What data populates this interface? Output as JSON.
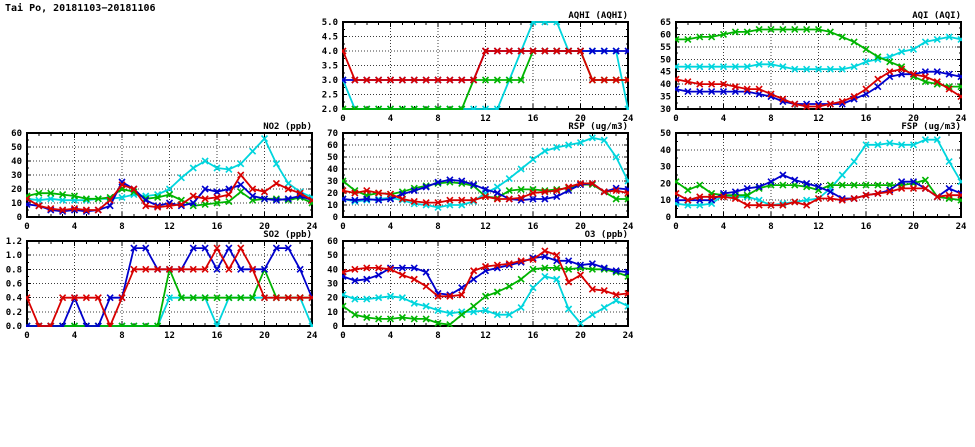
{
  "page": {
    "title": "Tai Po, 20181103−20181106"
  },
  "colors": {
    "grid": "#3c3c3c",
    "axis": "#000000",
    "blue": "#0000cd",
    "red": "#d80000",
    "green": "#00b400",
    "cyan": "#00d5dd"
  },
  "chart_data": [
    {
      "id": "aqhi",
      "type": "line",
      "title": "AQHI (AQHI)",
      "xlim": [
        0,
        24
      ],
      "xticks": [
        0,
        4,
        8,
        12,
        16,
        20,
        24
      ],
      "ylim": [
        2.0,
        5.0
      ],
      "yticks": [
        2.0,
        2.5,
        3.0,
        3.5,
        4.0,
        4.5,
        5.0
      ],
      "ytick_labels": [
        "2.0",
        "2.5",
        "3.0",
        "3.5",
        "4.0",
        "4.5",
        "5.0"
      ],
      "series": [
        {
          "name": "cyan",
          "color": "#00d5dd",
          "values": [
            3,
            2,
            2,
            2,
            2,
            2,
            2,
            2,
            2,
            2,
            2,
            2,
            2,
            2,
            3,
            4,
            5,
            5,
            5,
            4,
            4,
            4,
            4,
            4,
            2
          ]
        },
        {
          "name": "green",
          "color": "#00b400",
          "values": [
            2,
            2,
            2,
            2,
            2,
            2,
            2,
            2,
            2,
            2,
            2,
            3,
            3,
            3,
            3,
            3,
            4,
            4,
            4,
            4,
            4,
            3,
            3,
            3,
            3
          ]
        },
        {
          "name": "blue",
          "color": "#0000cd",
          "values": [
            3,
            3,
            3,
            3,
            3,
            3,
            3,
            3,
            3,
            3,
            3,
            3,
            4,
            4,
            4,
            4,
            4,
            4,
            4,
            4,
            4,
            4,
            4,
            4,
            4
          ]
        },
        {
          "name": "red",
          "color": "#d80000",
          "values": [
            4,
            3,
            3,
            3,
            3,
            3,
            3,
            3,
            3,
            3,
            3,
            3,
            4,
            4,
            4,
            4,
            4,
            4,
            4,
            4,
            4,
            3,
            3,
            3,
            3
          ]
        }
      ]
    },
    {
      "id": "aqi",
      "type": "line",
      "title": "AQI (AQI)",
      "xlim": [
        0,
        24
      ],
      "xticks": [
        0,
        4,
        8,
        12,
        16,
        20,
        24
      ],
      "ylim": [
        30,
        65
      ],
      "yticks": [
        30,
        35,
        40,
        45,
        50,
        55,
        60,
        65
      ],
      "ytick_labels": [
        "30",
        "35",
        "40",
        "45",
        "50",
        "55",
        "60",
        "65"
      ],
      "series": [
        {
          "name": "cyan",
          "color": "#00d5dd",
          "values": [
            47,
            47,
            47,
            47,
            47,
            47,
            47,
            48,
            48,
            47,
            46,
            46,
            46,
            46,
            46,
            47,
            49,
            50,
            51,
            53,
            54,
            57,
            58,
            59,
            58
          ]
        },
        {
          "name": "green",
          "color": "#00b400",
          "values": [
            58,
            58,
            59,
            59,
            60,
            61,
            61,
            62,
            62,
            62,
            62,
            62,
            62,
            61,
            59,
            57,
            54,
            51,
            49,
            47,
            43,
            41,
            40,
            39,
            39
          ]
        },
        {
          "name": "blue",
          "color": "#0000cd",
          "values": [
            38,
            37,
            37,
            37,
            37,
            37,
            37,
            36,
            35,
            33,
            32,
            32,
            32,
            32,
            32,
            34,
            36,
            39,
            43,
            44,
            44,
            45,
            45,
            44,
            43
          ]
        },
        {
          "name": "red",
          "color": "#d80000",
          "values": [
            42,
            41,
            40,
            40,
            40,
            39,
            38,
            38,
            36,
            34,
            32,
            31,
            31,
            32,
            33,
            35,
            38,
            42,
            45,
            46,
            44,
            43,
            41,
            38,
            35
          ]
        }
      ]
    },
    {
      "id": "no2",
      "type": "line",
      "title": "NO2 (ppb)",
      "xlim": [
        0,
        24
      ],
      "xticks": [
        0,
        4,
        8,
        12,
        16,
        20,
        24
      ],
      "ylim": [
        0,
        60
      ],
      "yticks": [
        0,
        10,
        20,
        30,
        40,
        50,
        60
      ],
      "ytick_labels": [
        "0",
        "10",
        "20",
        "30",
        "40",
        "50",
        "60"
      ],
      "series": [
        {
          "name": "cyan",
          "color": "#00d5dd",
          "values": [
            13,
            12,
            13,
            12,
            12,
            12,
            13,
            13,
            14,
            16,
            15,
            16,
            20,
            28,
            35,
            40,
            35,
            34,
            38,
            47,
            56,
            38,
            24,
            18,
            14
          ]
        },
        {
          "name": "green",
          "color": "#00b400",
          "values": [
            15,
            17,
            17,
            16,
            15,
            13,
            13,
            14,
            20,
            18,
            13,
            14,
            16,
            12,
            8,
            9,
            10,
            11,
            18,
            12,
            13,
            13,
            12,
            14,
            10
          ]
        },
        {
          "name": "blue",
          "color": "#0000cd",
          "values": [
            9,
            8,
            5,
            4,
            5,
            4,
            5,
            8,
            25,
            20,
            12,
            8,
            10,
            8,
            10,
            20,
            18,
            20,
            23,
            15,
            13,
            12,
            13,
            15,
            12
          ]
        },
        {
          "name": "red",
          "color": "#d80000",
          "values": [
            13,
            8,
            6,
            5,
            6,
            5,
            5,
            12,
            23,
            20,
            8,
            7,
            8,
            9,
            15,
            13,
            14,
            16,
            30,
            20,
            18,
            24,
            20,
            17,
            12
          ]
        }
      ]
    },
    {
      "id": "rsp",
      "type": "line",
      "title": "RSP (ug/m3)",
      "xlim": [
        0,
        24
      ],
      "xticks": [
        0,
        4,
        8,
        12,
        16,
        20,
        24
      ],
      "ylim": [
        0,
        70
      ],
      "yticks": [
        0,
        10,
        20,
        30,
        40,
        50,
        60,
        70
      ],
      "ytick_labels": [
        "0",
        "10",
        "20",
        "30",
        "40",
        "50",
        "60",
        "70"
      ],
      "series": [
        {
          "name": "cyan",
          "color": "#00d5dd",
          "values": [
            15,
            13,
            14,
            15,
            16,
            14,
            11,
            10,
            8,
            10,
            10,
            13,
            20,
            25,
            32,
            40,
            48,
            55,
            58,
            60,
            62,
            66,
            64,
            50,
            30
          ]
        },
        {
          "name": "green",
          "color": "#00b400",
          "values": [
            30,
            22,
            18,
            20,
            19,
            21,
            24,
            26,
            28,
            29,
            28,
            26,
            17,
            16,
            22,
            23,
            23,
            22,
            23,
            24,
            27,
            27,
            21,
            15,
            15
          ]
        },
        {
          "name": "blue",
          "color": "#0000cd",
          "values": [
            15,
            14,
            15,
            14,
            15,
            19,
            22,
            25,
            29,
            31,
            30,
            27,
            23,
            20,
            15,
            14,
            15,
            15,
            17,
            22,
            27,
            28,
            21,
            24,
            23
          ]
        },
        {
          "name": "red",
          "color": "#d80000",
          "values": [
            22,
            20,
            22,
            20,
            19,
            15,
            13,
            12,
            12,
            14,
            14,
            14,
            17,
            15,
            15,
            16,
            20,
            21,
            22,
            25,
            28,
            28,
            21,
            22,
            20
          ]
        }
      ]
    },
    {
      "id": "fsp",
      "type": "line",
      "title": "FSP (ug/m3)",
      "xlim": [
        0,
        24
      ],
      "xticks": [
        0,
        4,
        8,
        12,
        16,
        20,
        24
      ],
      "ylim": [
        0,
        50
      ],
      "yticks": [
        0,
        10,
        20,
        30,
        40,
        50
      ],
      "ytick_labels": [
        "0",
        "10",
        "20",
        "30",
        "40",
        "50"
      ],
      "series": [
        {
          "name": "cyan",
          "color": "#00d5dd",
          "values": [
            8,
            7,
            7,
            8,
            13,
            12,
            12,
            10,
            7,
            8,
            9,
            10,
            11,
            17,
            25,
            33,
            43,
            43,
            44,
            43,
            43,
            46,
            46,
            33,
            21
          ]
        },
        {
          "name": "green",
          "color": "#00b400",
          "values": [
            21,
            16,
            19,
            14,
            13,
            13,
            13,
            17,
            19,
            19,
            19,
            18,
            16,
            19,
            19,
            19,
            19,
            19,
            19,
            19,
            20,
            22,
            12,
            11,
            10
          ]
        },
        {
          "name": "blue",
          "color": "#0000cd",
          "values": [
            10,
            10,
            10,
            10,
            14,
            15,
            17,
            18,
            21,
            25,
            22,
            20,
            18,
            15,
            11,
            11,
            13,
            14,
            16,
            21,
            21,
            17,
            12,
            17,
            14
          ]
        },
        {
          "name": "red",
          "color": "#d80000",
          "values": [
            14,
            10,
            12,
            12,
            12,
            11,
            7,
            7,
            7,
            7,
            9,
            7,
            11,
            11,
            10,
            11,
            13,
            14,
            15,
            17,
            17,
            17,
            12,
            13,
            13
          ]
        }
      ]
    },
    {
      "id": "so2",
      "type": "line",
      "title": "SO2 (ppb)",
      "xlim": [
        0,
        24
      ],
      "xticks": [
        0,
        4,
        8,
        12,
        16,
        20,
        24
      ],
      "ylim": [
        0,
        1.2
      ],
      "yticks": [
        0,
        0.2,
        0.4,
        0.6,
        0.8,
        1.0,
        1.2
      ],
      "ytick_labels": [
        "0.0",
        "0.2",
        "0.4",
        "0.6",
        "0.8",
        "1.0",
        "1.2"
      ],
      "series": [
        {
          "name": "cyan",
          "color": "#00d5dd",
          "values": [
            0,
            0,
            0,
            0,
            0,
            0,
            0,
            0,
            0,
            0,
            0,
            0,
            0.4,
            0.4,
            0.4,
            0.4,
            0,
            0.4,
            0.4,
            0.4,
            0.4,
            0.4,
            0.4,
            0.4,
            0
          ]
        },
        {
          "name": "green",
          "color": "#00b400",
          "values": [
            0,
            0,
            0,
            0,
            0,
            0,
            0,
            0,
            0,
            0,
            0,
            0,
            0.8,
            0.4,
            0.4,
            0.4,
            0.4,
            0.4,
            0.4,
            0.4,
            0.8,
            0.4,
            0.4,
            0.4,
            0.4
          ]
        },
        {
          "name": "blue",
          "color": "#0000cd",
          "values": [
            0,
            0,
            0,
            0,
            0.4,
            0,
            0,
            0.4,
            0.4,
            1.1,
            1.1,
            0.8,
            0.8,
            0.8,
            1.1,
            1.1,
            0.8,
            1.1,
            0.8,
            0.8,
            0.8,
            1.1,
            1.1,
            0.8,
            0.4
          ]
        },
        {
          "name": "red",
          "color": "#d80000",
          "values": [
            0.4,
            0,
            0,
            0.4,
            0.4,
            0.4,
            0.4,
            0,
            0.4,
            0.8,
            0.8,
            0.8,
            0.8,
            0.8,
            0.8,
            0.8,
            1.1,
            0.8,
            1.1,
            0.8,
            0.4,
            0.4,
            0.4,
            0.4,
            0.4
          ]
        }
      ]
    },
    {
      "id": "o3",
      "type": "line",
      "title": "O3 (ppb)",
      "xlim": [
        0,
        24
      ],
      "xticks": [
        0,
        4,
        8,
        12,
        16,
        20,
        24
      ],
      "ylim": [
        0,
        60
      ],
      "yticks": [
        0,
        10,
        20,
        30,
        40,
        50,
        60
      ],
      "ytick_labels": [
        "0",
        "10",
        "20",
        "30",
        "40",
        "50",
        "60"
      ],
      "series": [
        {
          "name": "cyan",
          "color": "#00d5dd",
          "values": [
            22,
            19,
            19,
            20,
            21,
            20,
            16,
            14,
            11,
            9,
            10,
            10,
            11,
            8,
            8,
            13,
            27,
            35,
            33,
            12,
            2,
            8,
            13,
            18,
            14
          ]
        },
        {
          "name": "green",
          "color": "#00b400",
          "values": [
            14,
            8,
            6,
            5,
            5,
            6,
            5,
            5,
            2,
            1,
            8,
            14,
            21,
            24,
            28,
            33,
            40,
            41,
            41,
            40,
            41,
            40,
            40,
            38,
            35
          ]
        },
        {
          "name": "blue",
          "color": "#0000cd",
          "values": [
            35,
            32,
            33,
            36,
            41,
            41,
            41,
            38,
            23,
            22,
            27,
            33,
            39,
            41,
            43,
            45,
            48,
            49,
            46,
            46,
            43,
            44,
            41,
            39,
            38
          ]
        },
        {
          "name": "red",
          "color": "#d80000",
          "values": [
            38,
            40,
            41,
            41,
            40,
            36,
            33,
            28,
            21,
            21,
            22,
            39,
            42,
            43,
            44,
            46,
            47,
            53,
            50,
            31,
            36,
            26,
            25,
            22,
            23
          ]
        }
      ]
    }
  ]
}
